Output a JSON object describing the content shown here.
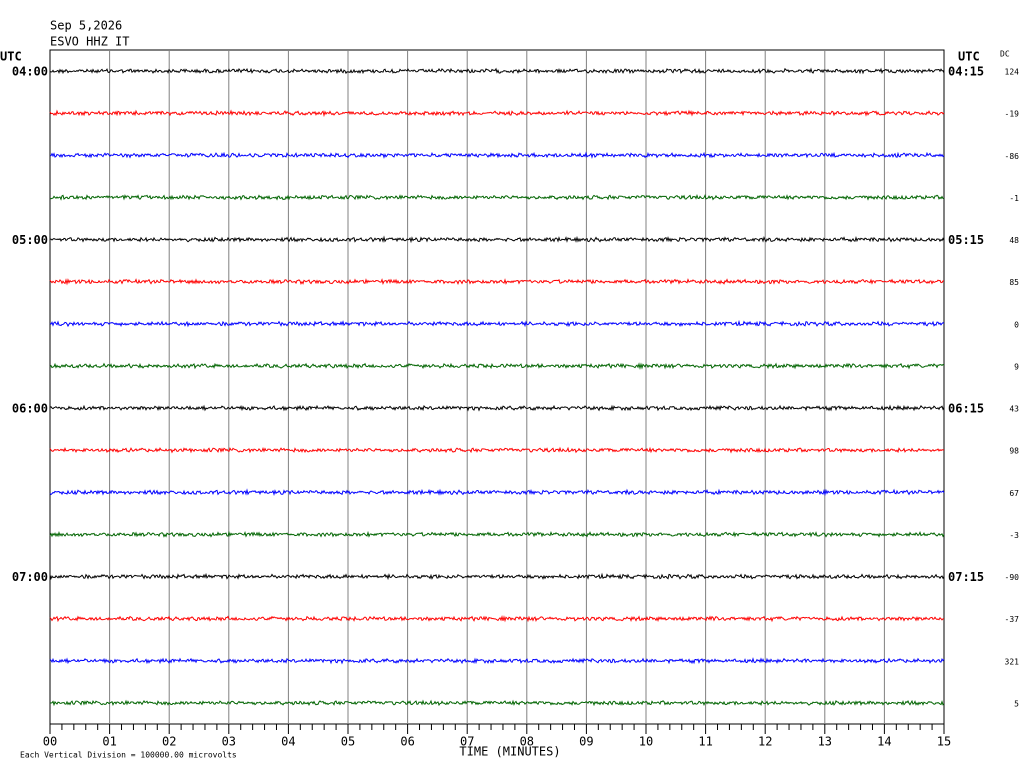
{
  "header": {
    "date": "Sep 5,2026",
    "station": "ESVO HHZ IT"
  },
  "left_title": "UTC",
  "right_title": "UTC",
  "dc_title": "DC",
  "rows": [
    {
      "left": "04:00",
      "right": "04:15",
      "dc": 124,
      "color": "#000000"
    },
    {
      "dc": -19,
      "color": "#ff0000"
    },
    {
      "dc": -86,
      "color": "#0000ff"
    },
    {
      "dc": -1,
      "color": "#006400"
    },
    {
      "left": "05:00",
      "right": "05:15",
      "dc": 48,
      "color": "#000000"
    },
    {
      "dc": 85,
      "color": "#ff0000"
    },
    {
      "dc": 0,
      "color": "#0000ff"
    },
    {
      "dc": 9,
      "color": "#006400"
    },
    {
      "left": "06:00",
      "right": "06:15",
      "dc": 43,
      "color": "#000000"
    },
    {
      "dc": 98,
      "color": "#ff0000"
    },
    {
      "dc": 67,
      "color": "#0000ff"
    },
    {
      "dc": -3,
      "color": "#006400"
    },
    {
      "left": "07:00",
      "right": "07:15",
      "dc": -90,
      "color": "#000000"
    },
    {
      "dc": -37,
      "color": "#ff0000"
    },
    {
      "dc": 321,
      "color": "#0000ff"
    },
    {
      "dc": 5,
      "color": "#006400"
    }
  ],
  "x_axis": {
    "title": "TIME (MINUTES)",
    "ticks": [
      "00",
      "01",
      "02",
      "03",
      "04",
      "05",
      "06",
      "07",
      "08",
      "09",
      "10",
      "11",
      "12",
      "13",
      "14",
      "15"
    ]
  },
  "footer": "Each Vertical Division = 100000.00 microvolts"
}
